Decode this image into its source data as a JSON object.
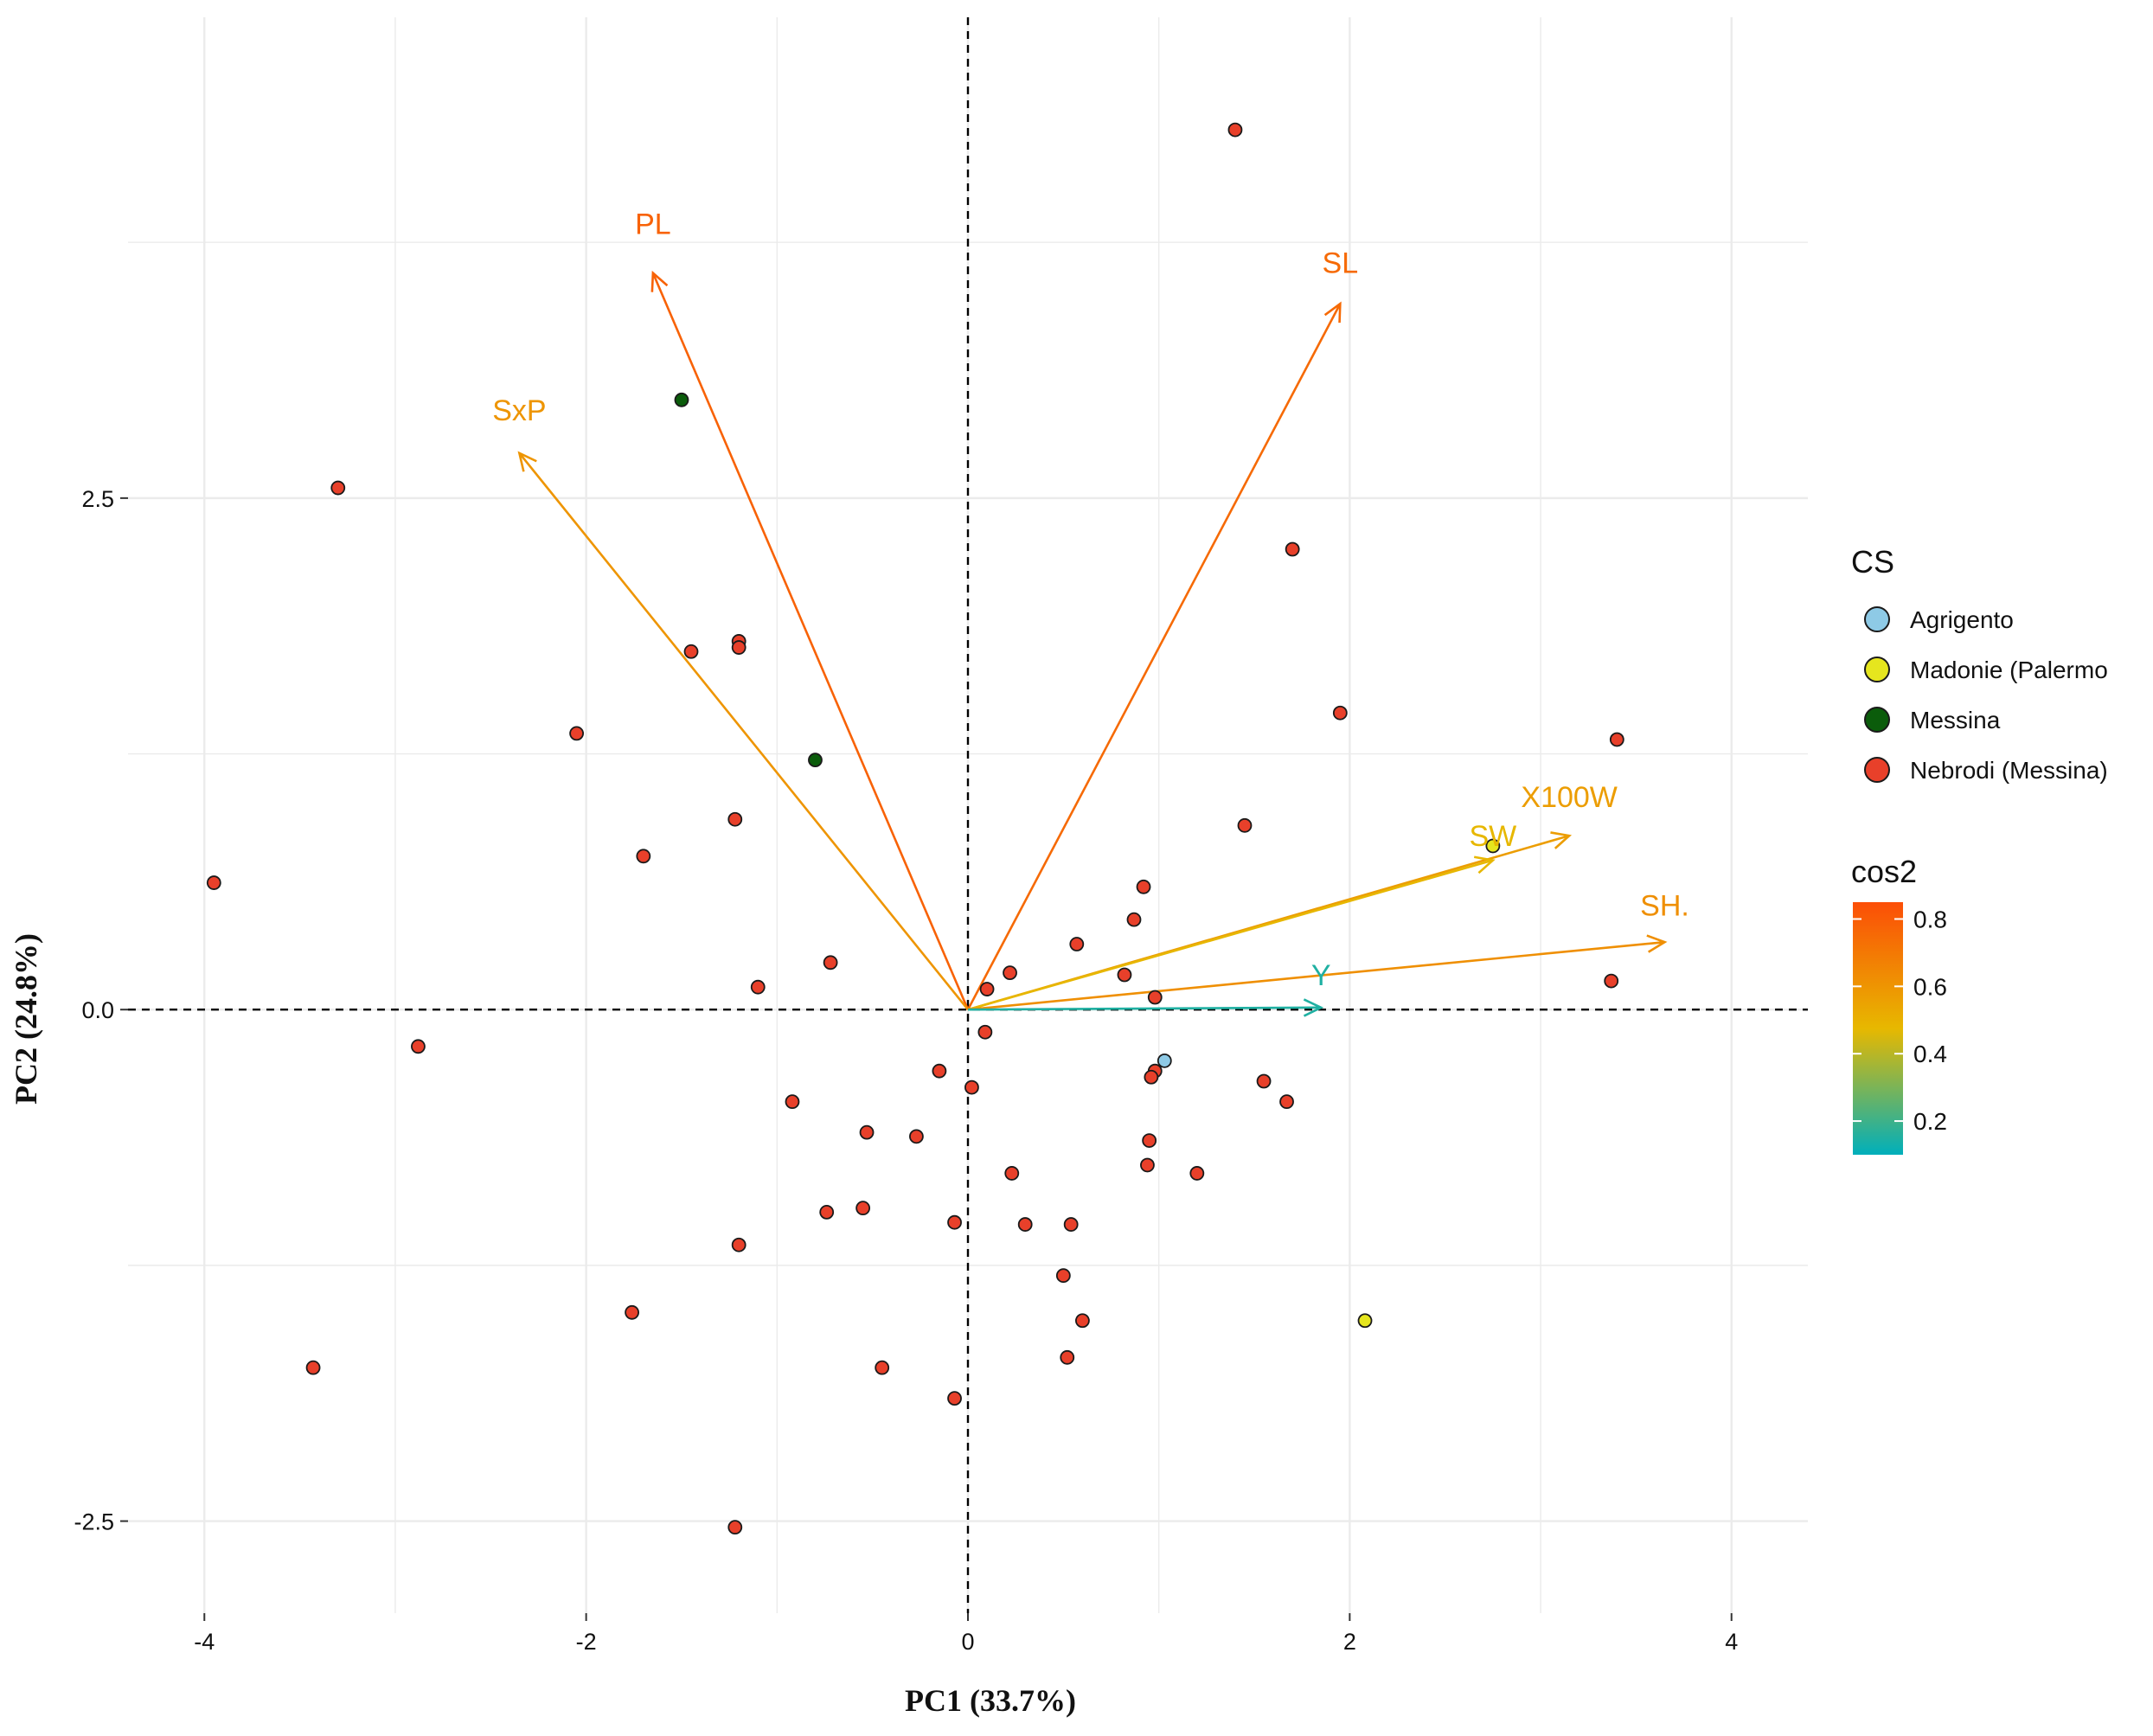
{
  "chart_data": {
    "type": "scatter",
    "subtype": "pca-biplot",
    "xlabel": "PC1 (33.7%)",
    "ylabel": "PC2 (24.8%)",
    "xlim": [
      -4.4,
      4.4
    ],
    "ylim": [
      -2.95,
      4.85
    ],
    "x_ticks": [
      -4,
      -2,
      0,
      2,
      4
    ],
    "x_tick_labels": [
      "-4",
      "-2",
      "0",
      "2",
      "4"
    ],
    "y_ticks": [
      -2.5,
      0,
      2.5
    ],
    "y_tick_labels": [
      "-2.5",
      "0.0",
      "2.5"
    ],
    "grid": true,
    "reference_lines": {
      "x": 0,
      "y": 0,
      "style": "dashed"
    },
    "legend_groups": {
      "title": "CS",
      "position": "right",
      "entries": [
        {
          "name": "Agrigento",
          "color": "#8ECAE6"
        },
        {
          "name": "Madonie (Palermo",
          "color": "#E6E61E"
        },
        {
          "name": "Messina",
          "color": "#0B5C0B"
        },
        {
          "name": "Nebrodi (Messina)",
          "color": "#E8402A"
        }
      ]
    },
    "legend_cos2": {
      "title": "cos2",
      "position": "right",
      "min": 0.1,
      "max": 0.85,
      "ticks": [
        0.2,
        0.4,
        0.6,
        0.8
      ],
      "tick_labels": [
        "0.2",
        "0.4",
        "0.6",
        "0.8"
      ],
      "colors": [
        "#00AFBB",
        "#E7B800",
        "#FC4E07"
      ]
    },
    "points": [
      {
        "x": 1.4,
        "y": 4.3,
        "group": "Nebrodi (Messina)"
      },
      {
        "x": -3.3,
        "y": 2.55,
        "group": "Nebrodi (Messina)"
      },
      {
        "x": -1.5,
        "y": 2.98,
        "group": "Messina"
      },
      {
        "x": -0.8,
        "y": 1.22,
        "group": "Messina"
      },
      {
        "x": 1.7,
        "y": 2.25,
        "group": "Nebrodi (Messina)"
      },
      {
        "x": -1.2,
        "y": 1.8,
        "group": "Nebrodi (Messina)"
      },
      {
        "x": -1.2,
        "y": 1.77,
        "group": "Nebrodi (Messina)"
      },
      {
        "x": -1.45,
        "y": 1.75,
        "group": "Nebrodi (Messina)"
      },
      {
        "x": -2.05,
        "y": 1.35,
        "group": "Nebrodi (Messina)"
      },
      {
        "x": 1.95,
        "y": 1.45,
        "group": "Nebrodi (Messina)"
      },
      {
        "x": 3.4,
        "y": 1.32,
        "group": "Nebrodi (Messina)"
      },
      {
        "x": -1.22,
        "y": 0.93,
        "group": "Nebrodi (Messina)"
      },
      {
        "x": 1.45,
        "y": 0.9,
        "group": "Nebrodi (Messina)"
      },
      {
        "x": -3.95,
        "y": 0.62,
        "group": "Nebrodi (Messina)"
      },
      {
        "x": -1.7,
        "y": 0.75,
        "group": "Nebrodi (Messina)"
      },
      {
        "x": 2.75,
        "y": 0.8,
        "group": "Madonie (Palermo"
      },
      {
        "x": 0.92,
        "y": 0.6,
        "group": "Nebrodi (Messina)"
      },
      {
        "x": 0.87,
        "y": 0.44,
        "group": "Nebrodi (Messina)"
      },
      {
        "x": 0.57,
        "y": 0.32,
        "group": "Nebrodi (Messina)"
      },
      {
        "x": -0.72,
        "y": 0.23,
        "group": "Nebrodi (Messina)"
      },
      {
        "x": 0.22,
        "y": 0.18,
        "group": "Nebrodi (Messina)"
      },
      {
        "x": 0.82,
        "y": 0.17,
        "group": "Nebrodi (Messina)"
      },
      {
        "x": 0.1,
        "y": 0.1,
        "group": "Nebrodi (Messina)"
      },
      {
        "x": -1.1,
        "y": 0.11,
        "group": "Nebrodi (Messina)"
      },
      {
        "x": 3.37,
        "y": 0.14,
        "group": "Nebrodi (Messina)"
      },
      {
        "x": 0.98,
        "y": 0.06,
        "group": "Nebrodi (Messina)"
      },
      {
        "x": -2.88,
        "y": -0.18,
        "group": "Nebrodi (Messina)"
      },
      {
        "x": 0.09,
        "y": -0.11,
        "group": "Nebrodi (Messina)"
      },
      {
        "x": 1.03,
        "y": -0.25,
        "group": "Agrigento"
      },
      {
        "x": 0.98,
        "y": -0.3,
        "group": "Nebrodi (Messina)"
      },
      {
        "x": 0.96,
        "y": -0.33,
        "group": "Nebrodi (Messina)"
      },
      {
        "x": -0.15,
        "y": -0.3,
        "group": "Nebrodi (Messina)"
      },
      {
        "x": 0.02,
        "y": -0.38,
        "group": "Nebrodi (Messina)"
      },
      {
        "x": 1.55,
        "y": -0.35,
        "group": "Nebrodi (Messina)"
      },
      {
        "x": 1.67,
        "y": -0.45,
        "group": "Nebrodi (Messina)"
      },
      {
        "x": -0.92,
        "y": -0.45,
        "group": "Nebrodi (Messina)"
      },
      {
        "x": -0.53,
        "y": -0.6,
        "group": "Nebrodi (Messina)"
      },
      {
        "x": -0.27,
        "y": -0.62,
        "group": "Nebrodi (Messina)"
      },
      {
        "x": 0.95,
        "y": -0.64,
        "group": "Nebrodi (Messina)"
      },
      {
        "x": 0.94,
        "y": -0.76,
        "group": "Nebrodi (Messina)"
      },
      {
        "x": 1.2,
        "y": -0.8,
        "group": "Nebrodi (Messina)"
      },
      {
        "x": 0.23,
        "y": -0.8,
        "group": "Nebrodi (Messina)"
      },
      {
        "x": -0.55,
        "y": -0.97,
        "group": "Nebrodi (Messina)"
      },
      {
        "x": -0.74,
        "y": -0.99,
        "group": "Nebrodi (Messina)"
      },
      {
        "x": -0.07,
        "y": -1.04,
        "group": "Nebrodi (Messina)"
      },
      {
        "x": 0.3,
        "y": -1.05,
        "group": "Nebrodi (Messina)"
      },
      {
        "x": 0.54,
        "y": -1.05,
        "group": "Nebrodi (Messina)"
      },
      {
        "x": -1.2,
        "y": -1.15,
        "group": "Nebrodi (Messina)"
      },
      {
        "x": 0.5,
        "y": -1.3,
        "group": "Nebrodi (Messina)"
      },
      {
        "x": -1.76,
        "y": -1.48,
        "group": "Nebrodi (Messina)"
      },
      {
        "x": 0.6,
        "y": -1.52,
        "group": "Nebrodi (Messina)"
      },
      {
        "x": 2.08,
        "y": -1.52,
        "group": "Madonie (Palermo"
      },
      {
        "x": 0.52,
        "y": -1.7,
        "group": "Nebrodi (Messina)"
      },
      {
        "x": -3.43,
        "y": -1.75,
        "group": "Nebrodi (Messina)"
      },
      {
        "x": -0.45,
        "y": -1.75,
        "group": "Nebrodi (Messina)"
      },
      {
        "x": -0.07,
        "y": -1.9,
        "group": "Nebrodi (Messina)"
      },
      {
        "x": -1.22,
        "y": -2.53,
        "group": "Nebrodi (Messina)"
      }
    ],
    "variables": [
      {
        "name": "PL",
        "x": -1.65,
        "y": 3.6,
        "cos2": 0.78
      },
      {
        "name": "SxP",
        "x": -2.35,
        "y": 2.72,
        "cos2": 0.6
      },
      {
        "name": "SL",
        "x": 1.95,
        "y": 3.45,
        "cos2": 0.75
      },
      {
        "name": "X100W",
        "x": 3.15,
        "y": 0.85,
        "cos2": 0.57
      },
      {
        "name": "SW",
        "x": 2.75,
        "y": 0.73,
        "cos2": 0.48
      },
      {
        "name": "SH.",
        "x": 3.65,
        "y": 0.33,
        "cos2": 0.62
      },
      {
        "name": "Y",
        "x": 1.85,
        "y": 0.01,
        "cos2": 0.15
      }
    ],
    "variable_labels": [
      {
        "name": "PL",
        "x": -1.65,
        "y": 3.79
      },
      {
        "name": "SxP",
        "x": -2.35,
        "y": 2.88
      },
      {
        "name": "SL",
        "x": 1.95,
        "y": 3.6
      },
      {
        "name": "X100W",
        "x": 3.15,
        "y": 0.99
      },
      {
        "name": "SW",
        "x": 2.75,
        "y": 0.8
      },
      {
        "name": "SH.",
        "x": 3.65,
        "y": 0.46
      },
      {
        "name": "Y",
        "x": 1.85,
        "y": 0.12
      }
    ]
  }
}
